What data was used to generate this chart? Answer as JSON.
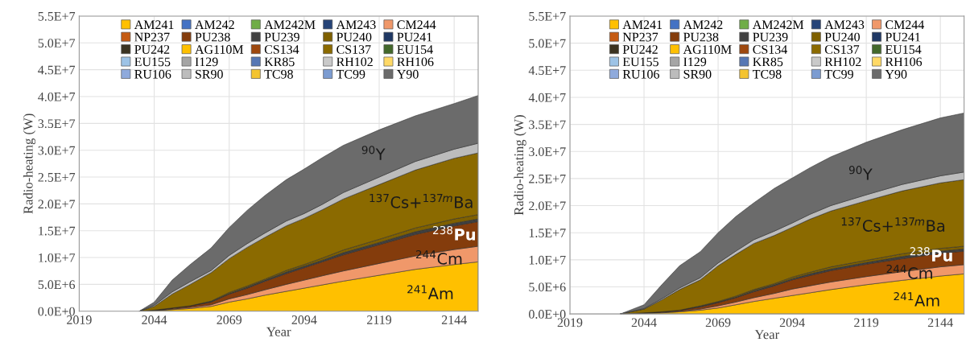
{
  "chart_data": [
    {
      "type": "area",
      "stacked": true,
      "xlabel": "Year",
      "ylabel": "Radio-heating (W)",
      "grid": true,
      "legend": "top",
      "xlim": [
        2019,
        2152
      ],
      "xticks": [
        2019,
        2044,
        2069,
        2094,
        2119,
        2144
      ],
      "ylim": [
        0,
        55000000.0
      ],
      "yticks": [
        {
          "value": 0,
          "label": "0.0E+0"
        },
        {
          "value": 5000000.0,
          "label": "5.0E+6"
        },
        {
          "value": 10000000.0,
          "label": "1.0E+7"
        },
        {
          "value": 15000000.0,
          "label": "1.5E+7"
        },
        {
          "value": 20000000.0,
          "label": "2.0E+7"
        },
        {
          "value": 25000000.0,
          "label": "2.5E+7"
        },
        {
          "value": 30000000.0,
          "label": "3.0E+7"
        },
        {
          "value": 35000000.0,
          "label": "3.5E+7"
        },
        {
          "value": 40000000.0,
          "label": "4.0E+7"
        },
        {
          "value": 45000000.0,
          "label": "4.5E+7"
        },
        {
          "value": 50000000.0,
          "label": "5.0E+7"
        },
        {
          "value": 55000000.0,
          "label": "5.5E+7"
        }
      ],
      "x": [
        2039,
        2044,
        2050,
        2056,
        2063,
        2069,
        2075,
        2081,
        2088,
        2094,
        2100,
        2107,
        2119,
        2131,
        2144,
        2152
      ],
      "series": [
        {
          "name": "AM241",
          "color": "#ffc000",
          "values": [
            0,
            100000.0,
            300000.0,
            500000.0,
            900000.0,
            1700000.0,
            2300000.0,
            3000000.0,
            3700000.0,
            4300000.0,
            4900000.0,
            5600000.0,
            6700000.0,
            7800000.0,
            8700000.0,
            9200000.0
          ]
        },
        {
          "name": "AM242",
          "color": "#4472c4",
          "values": [
            null,
            null,
            null,
            null,
            null,
            null,
            null,
            null,
            null,
            null,
            null,
            null,
            null,
            null,
            null,
            null
          ]
        },
        {
          "name": "AM242M",
          "color": "#70ad47",
          "values": [
            null,
            null,
            null,
            null,
            null,
            null,
            null,
            null,
            null,
            null,
            null,
            null,
            null,
            null,
            null,
            null
          ]
        },
        {
          "name": "AM243",
          "color": "#264478",
          "values": [
            null,
            null,
            null,
            null,
            null,
            null,
            null,
            null,
            null,
            null,
            null,
            null,
            null,
            null,
            null,
            null
          ]
        },
        {
          "name": "CM244",
          "color": "#f0986a",
          "values": [
            0,
            0,
            100000.0,
            200000.0,
            300000.0,
            600000.0,
            800000.0,
            1000000.0,
            1300000.0,
            1500000.0,
            1700000.0,
            1900000.0,
            2200000.0,
            2500000.0,
            2800000.0,
            2900000.0
          ]
        },
        {
          "name": "NP237",
          "color": "#c55a11",
          "values": [
            null,
            null,
            null,
            null,
            null,
            null,
            null,
            null,
            null,
            null,
            null,
            null,
            null,
            null,
            null,
            null
          ]
        },
        {
          "name": "PU238",
          "color": "#843c0c",
          "values": [
            0,
            100000.0,
            200000.0,
            300000.0,
            500000.0,
            900000.0,
            1200000.0,
            1600000.0,
            2000000.0,
            2300000.0,
            2600000.0,
            3000000.0,
            3500000.0,
            4000000.0,
            4400000.0,
            4600000.0
          ]
        },
        {
          "name": "PU239",
          "color": "#404040",
          "values": [
            0,
            0,
            0,
            0,
            100000.0,
            100000.0,
            200000.0,
            200000.0,
            300000.0,
            300000.0,
            300000.0,
            400000.0,
            400000.0,
            500000.0,
            500000.0,
            500000.0
          ]
        },
        {
          "name": "PU240",
          "color": "#7f6000",
          "values": [
            0,
            0,
            0,
            0,
            100000.0,
            200000.0,
            200000.0,
            200000.0,
            300000.0,
            300000.0,
            400000.0,
            500000.0,
            600000.0,
            700000.0,
            800000.0,
            800000.0
          ]
        },
        {
          "name": "PU241",
          "color": "#1f3864",
          "values": [
            null,
            null,
            null,
            null,
            null,
            null,
            null,
            null,
            null,
            null,
            null,
            null,
            null,
            null,
            null,
            null
          ]
        },
        {
          "name": "PU242",
          "color": "#3b3320",
          "values": [
            null,
            null,
            null,
            null,
            null,
            null,
            null,
            null,
            null,
            null,
            null,
            null,
            null,
            null,
            null,
            null
          ]
        },
        {
          "name": "AG110M",
          "color": "#ffc000",
          "values": [
            null,
            null,
            null,
            null,
            null,
            null,
            null,
            null,
            null,
            null,
            null,
            null,
            null,
            null,
            null,
            null
          ]
        },
        {
          "name": "CS134",
          "color": "#9e480e",
          "values": [
            null,
            null,
            null,
            null,
            null,
            null,
            null,
            null,
            null,
            null,
            null,
            null,
            null,
            null,
            null,
            null
          ]
        },
        {
          "name": "CS137",
          "color": "#8b6a00",
          "values": [
            0,
            700000.0,
            2600000.0,
            4000000.0,
            5300000.0,
            6300000.0,
            7200000.0,
            7800000.0,
            8300000.0,
            8600000.0,
            9000000.0,
            9500000.0,
            10200000.0,
            10800000.0,
            11300000.0,
            11500000.0
          ]
        },
        {
          "name": "EU154",
          "color": "#43682b",
          "values": [
            null,
            null,
            null,
            null,
            null,
            null,
            null,
            null,
            null,
            null,
            null,
            null,
            null,
            null,
            null,
            null
          ]
        },
        {
          "name": "EU155",
          "color": "#9dc3e6",
          "values": [
            null,
            null,
            null,
            null,
            null,
            null,
            null,
            null,
            null,
            null,
            null,
            null,
            null,
            null,
            null,
            null
          ]
        },
        {
          "name": "I129",
          "color": "#a5a5a5",
          "values": [
            null,
            null,
            null,
            null,
            null,
            null,
            null,
            null,
            null,
            null,
            null,
            null,
            null,
            null,
            null,
            null
          ]
        },
        {
          "name": "KR85",
          "color": "#5677b4",
          "values": [
            null,
            null,
            null,
            null,
            null,
            null,
            null,
            null,
            null,
            null,
            null,
            null,
            null,
            null,
            null,
            null
          ]
        },
        {
          "name": "RH102",
          "color": "#c9c9c9",
          "values": [
            null,
            null,
            null,
            null,
            null,
            null,
            null,
            null,
            null,
            null,
            null,
            null,
            null,
            null,
            null,
            null
          ]
        },
        {
          "name": "RH106",
          "color": "#ffd966",
          "values": [
            null,
            null,
            null,
            null,
            null,
            null,
            null,
            null,
            null,
            null,
            null,
            null,
            null,
            null,
            null,
            null
          ]
        },
        {
          "name": "RU106",
          "color": "#8faadc",
          "values": [
            null,
            null,
            null,
            null,
            null,
            null,
            null,
            null,
            null,
            null,
            null,
            null,
            null,
            null,
            null,
            null
          ]
        },
        {
          "name": "SR90",
          "color": "#bcbcbc",
          "values": [
            0,
            200000.0,
            400000.0,
            500000.0,
            400000.0,
            600000.0,
            700000.0,
            800000.0,
            900000.0,
            900000.0,
            1000000.0,
            1200000.0,
            1400000.0,
            1600000.0,
            1700000.0,
            1800000.0
          ]
        },
        {
          "name": "TC98",
          "color": "#f4c430",
          "values": [
            null,
            null,
            null,
            null,
            null,
            null,
            null,
            null,
            null,
            null,
            null,
            null,
            null,
            null,
            null,
            null
          ]
        },
        {
          "name": "TC99",
          "color": "#7c9cd1",
          "values": [
            null,
            null,
            null,
            null,
            null,
            null,
            null,
            null,
            null,
            null,
            null,
            null,
            null,
            null,
            null,
            null
          ]
        },
        {
          "name": "Y90",
          "color": "#6b6b6b",
          "values": [
            0,
            600000.0,
            2200000.0,
            3200000.0,
            4200000.0,
            5200000.0,
            6200000.0,
            7000000.0,
            7700000.0,
            8300000.0,
            8700000.0,
            8800000.0,
            8800000.0,
            8500000.0,
            8500000.0,
            8900000.0
          ]
        }
      ],
      "annotations": [
        "$^{90}$Y",
        "$^{137}$Cs+$^{137m}$Ba",
        "$^{238}$Pu",
        "$^{244}$Cm",
        "$^{241}$Am"
      ]
    },
    {
      "type": "area",
      "stacked": true,
      "xlabel": "Year",
      "ylabel": "Radio-heating (W)",
      "grid": true,
      "legend": "top",
      "xlim": [
        2019,
        2152
      ],
      "xticks": [
        2019,
        2044,
        2069,
        2094,
        2119,
        2144
      ],
      "ylim": [
        0,
        55000000.0
      ],
      "yticks": [
        {
          "value": 0,
          "label": "0.0E+0"
        },
        {
          "value": 5000000.0,
          "label": "5.0E+6"
        },
        {
          "value": 10000000.0,
          "label": "1.0E+7"
        },
        {
          "value": 15000000.0,
          "label": "1.5E+7"
        },
        {
          "value": 20000000.0,
          "label": "2.0E+7"
        },
        {
          "value": 25000000.0,
          "label": "2.5E+7"
        },
        {
          "value": 30000000.0,
          "label": "3.0E+7"
        },
        {
          "value": 35000000.0,
          "label": "3.5E+7"
        },
        {
          "value": 40000000.0,
          "label": "4.0E+7"
        },
        {
          "value": 45000000.0,
          "label": "4.5E+7"
        },
        {
          "value": 50000000.0,
          "label": "5.0E+7"
        },
        {
          "value": 55000000.0,
          "label": "5.5E+7"
        }
      ],
      "x": [
        2036,
        2044,
        2050,
        2056,
        2063,
        2069,
        2075,
        2081,
        2088,
        2094,
        2100,
        2107,
        2119,
        2131,
        2144,
        2152
      ],
      "series": [
        {
          "name": "AM241",
          "color": "#ffc000",
          "values": [
            0,
            100000.0,
            200000.0,
            400000.0,
            700000.0,
            1100000.0,
            1700000.0,
            2300000.0,
            2900000.0,
            3400000.0,
            3900000.0,
            4500000.0,
            5400000.0,
            6200000.0,
            7000000.0,
            7400000.0
          ]
        },
        {
          "name": "AM242",
          "color": "#4472c4",
          "values": [
            null,
            null,
            null,
            null,
            null,
            null,
            null,
            null,
            null,
            null,
            null,
            null,
            null,
            null,
            null,
            null
          ]
        },
        {
          "name": "AM242M",
          "color": "#70ad47",
          "values": [
            null,
            null,
            null,
            null,
            null,
            null,
            null,
            null,
            null,
            null,
            null,
            null,
            null,
            null,
            null,
            null
          ]
        },
        {
          "name": "AM243",
          "color": "#264478",
          "values": [
            null,
            null,
            null,
            null,
            null,
            null,
            null,
            null,
            null,
            null,
            null,
            null,
            null,
            null,
            null,
            null
          ]
        },
        {
          "name": "CM244",
          "color": "#f0986a",
          "values": [
            0,
            0,
            100000.0,
            100000.0,
            200000.0,
            400000.0,
            500000.0,
            700000.0,
            900000.0,
            1200000.0,
            1300000.0,
            1400000.0,
            1500000.0,
            1600000.0,
            1700000.0,
            1700000.0
          ]
        },
        {
          "name": "NP237",
          "color": "#c55a11",
          "values": [
            null,
            null,
            null,
            null,
            null,
            null,
            null,
            null,
            null,
            null,
            null,
            null,
            null,
            null,
            null,
            null
          ]
        },
        {
          "name": "PU238",
          "color": "#843c0c",
          "values": [
            0,
            100000.0,
            100000.0,
            200000.0,
            400000.0,
            600000.0,
            800000.0,
            1100000.0,
            1400000.0,
            1700000.0,
            1900000.0,
            2100000.0,
            2300000.0,
            2400000.0,
            2500000.0,
            2500000.0
          ]
        },
        {
          "name": "PU239",
          "color": "#404040",
          "values": [
            0,
            0,
            0,
            0,
            100000.0,
            100000.0,
            100000.0,
            200000.0,
            200000.0,
            200000.0,
            300000.0,
            300000.0,
            300000.0,
            400000.0,
            400000.0,
            400000.0
          ]
        },
        {
          "name": "PU240",
          "color": "#7f6000",
          "values": [
            0,
            0,
            0,
            0,
            100000.0,
            100000.0,
            200000.0,
            200000.0,
            200000.0,
            300000.0,
            300000.0,
            400000.0,
            400000.0,
            500000.0,
            500000.0,
            500000.0
          ]
        },
        {
          "name": "PU241",
          "color": "#1f3864",
          "values": [
            null,
            null,
            null,
            null,
            null,
            null,
            null,
            null,
            null,
            null,
            null,
            null,
            null,
            null,
            null,
            null
          ]
        },
        {
          "name": "PU242",
          "color": "#3b3320",
          "values": [
            null,
            null,
            null,
            null,
            null,
            null,
            null,
            null,
            null,
            null,
            null,
            null,
            null,
            null,
            null,
            null
          ]
        },
        {
          "name": "AG110M",
          "color": "#ffc000",
          "values": [
            null,
            null,
            null,
            null,
            null,
            null,
            null,
            null,
            null,
            null,
            null,
            null,
            null,
            null,
            null,
            null
          ]
        },
        {
          "name": "CS134",
          "color": "#9e480e",
          "values": [
            null,
            null,
            null,
            null,
            null,
            null,
            null,
            null,
            null,
            null,
            null,
            null,
            null,
            null,
            null,
            null
          ]
        },
        {
          "name": "CS137",
          "color": "#8b6a00",
          "values": [
            0,
            700000.0,
            2200000.0,
            3800000.0,
            4800000.0,
            6600000.0,
            7700000.0,
            8500000.0,
            8900000.0,
            9200000.0,
            9800000.0,
            10300000.0,
            11000000.0,
            11600000.0,
            12100000.0,
            12300000.0
          ]
        },
        {
          "name": "EU154",
          "color": "#43682b",
          "values": [
            null,
            null,
            null,
            null,
            null,
            null,
            null,
            null,
            null,
            null,
            null,
            null,
            null,
            null,
            null,
            null
          ]
        },
        {
          "name": "EU155",
          "color": "#9dc3e6",
          "values": [
            null,
            null,
            null,
            null,
            null,
            null,
            null,
            null,
            null,
            null,
            null,
            null,
            null,
            null,
            null,
            null
          ]
        },
        {
          "name": "I129",
          "color": "#a5a5a5",
          "values": [
            null,
            null,
            null,
            null,
            null,
            null,
            null,
            null,
            null,
            null,
            null,
            null,
            null,
            null,
            null,
            null
          ]
        },
        {
          "name": "KR85",
          "color": "#5677b4",
          "values": [
            null,
            null,
            null,
            null,
            null,
            null,
            null,
            null,
            null,
            null,
            null,
            null,
            null,
            null,
            null,
            null
          ]
        },
        {
          "name": "RH102",
          "color": "#c9c9c9",
          "values": [
            null,
            null,
            null,
            null,
            null,
            null,
            null,
            null,
            null,
            null,
            null,
            null,
            null,
            null,
            null,
            null
          ]
        },
        {
          "name": "RH106",
          "color": "#ffd966",
          "values": [
            null,
            null,
            null,
            null,
            null,
            null,
            null,
            null,
            null,
            null,
            null,
            null,
            null,
            null,
            null,
            null
          ]
        },
        {
          "name": "RU106",
          "color": "#8faadc",
          "values": [
            null,
            null,
            null,
            null,
            null,
            null,
            null,
            null,
            null,
            null,
            null,
            null,
            null,
            null,
            null,
            null
          ]
        },
        {
          "name": "SR90",
          "color": "#bcbcbc",
          "values": [
            0,
            100000.0,
            200000.0,
            300000.0,
            400000.0,
            500000.0,
            600000.0,
            700000.0,
            800000.0,
            800000.0,
            900000.0,
            1000000.0,
            1100000.0,
            1200000.0,
            1300000.0,
            1400000.0
          ]
        },
        {
          "name": "TC98",
          "color": "#f4c430",
          "values": [
            null,
            null,
            null,
            null,
            null,
            null,
            null,
            null,
            null,
            null,
            null,
            null,
            null,
            null,
            null,
            null
          ]
        },
        {
          "name": "TC99",
          "color": "#7c9cd1",
          "values": [
            null,
            null,
            null,
            null,
            null,
            null,
            null,
            null,
            null,
            null,
            null,
            null,
            null,
            null,
            null,
            null
          ]
        },
        {
          "name": "Y90",
          "color": "#6b6b6b",
          "values": [
            0,
            700000.0,
            2600000.0,
            4100000.0,
            4800000.0,
            5600000.0,
            6400000.0,
            6800000.0,
            7900000.0,
            8300000.0,
            8600000.0,
            9000000.0,
            9700000.0,
            10100000.0,
            10700000.0,
            10900000.0
          ]
        }
      ],
      "annotations": [
        "$^{90}$Y",
        "$^{137}$Cs+$^{137m}$Ba",
        "$^{238}$Pu",
        "$^{244}$Cm",
        "$^{241}$Am"
      ]
    }
  ]
}
